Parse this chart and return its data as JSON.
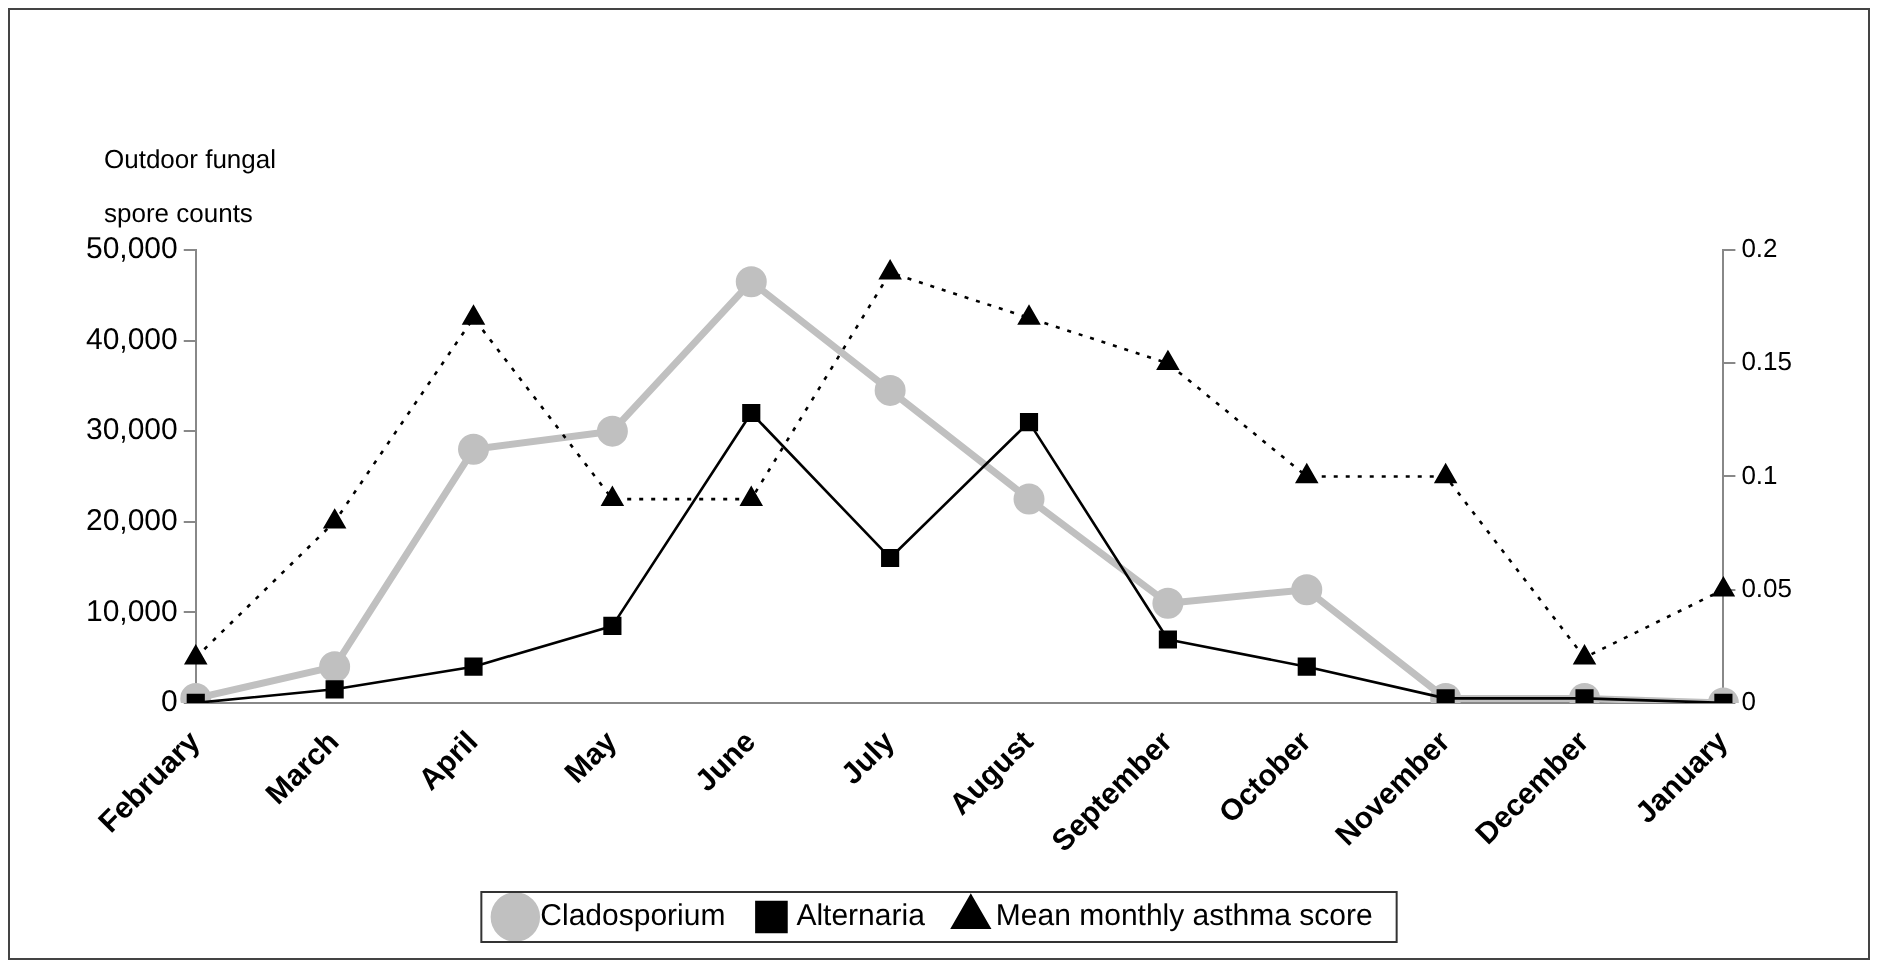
{
  "chart_data": {
    "type": "line",
    "ylabel": "Outdoor fungal spore counts",
    "categories": [
      "February",
      "March",
      "April",
      "May",
      "June",
      "July",
      "August",
      "September",
      "October",
      "November",
      "December",
      "January"
    ],
    "series": [
      {
        "name": "Cladosporium",
        "color": "#c0c0c0",
        "marker": "circle",
        "line_style": "solid",
        "values": [
          500,
          4000,
          28000,
          30000,
          46500,
          34500,
          22500,
          11000,
          12500,
          500,
          500,
          0
        ]
      },
      {
        "name": "Alternaria",
        "color": "#000000",
        "marker": "square",
        "line_style": "solid",
        "values": [
          0,
          1500,
          4000,
          8500,
          32000,
          16000,
          31000,
          7000,
          4000,
          500,
          500,
          0
        ]
      },
      {
        "name": "Mean monthly asthma score",
        "color": "#000000",
        "marker": "triangle",
        "line_style": "dotted",
        "axis": "y2",
        "values": [
          0.02,
          0.08,
          0.17,
          0.09,
          0.09,
          0.19,
          0.17,
          0.15,
          0.1,
          0.1,
          0.02,
          0.05
        ]
      }
    ],
    "ylim": [
      0,
      50000
    ],
    "yticks": [
      0,
      {
        "value": 10000,
        "label": "10,000"
      },
      {
        "value": 20000,
        "label": "20,000"
      },
      {
        "value": 30000,
        "label": "30,000"
      },
      {
        "value": 40000,
        "label": "40,000"
      },
      {
        "value": 50000,
        "label": "50,000"
      }
    ],
    "y2lim": [
      0,
      0.2
    ],
    "y2ticks": [
      0,
      0.05,
      0.1,
      0.15,
      0.2
    ],
    "grid": false,
    "legend": "bottom"
  }
}
